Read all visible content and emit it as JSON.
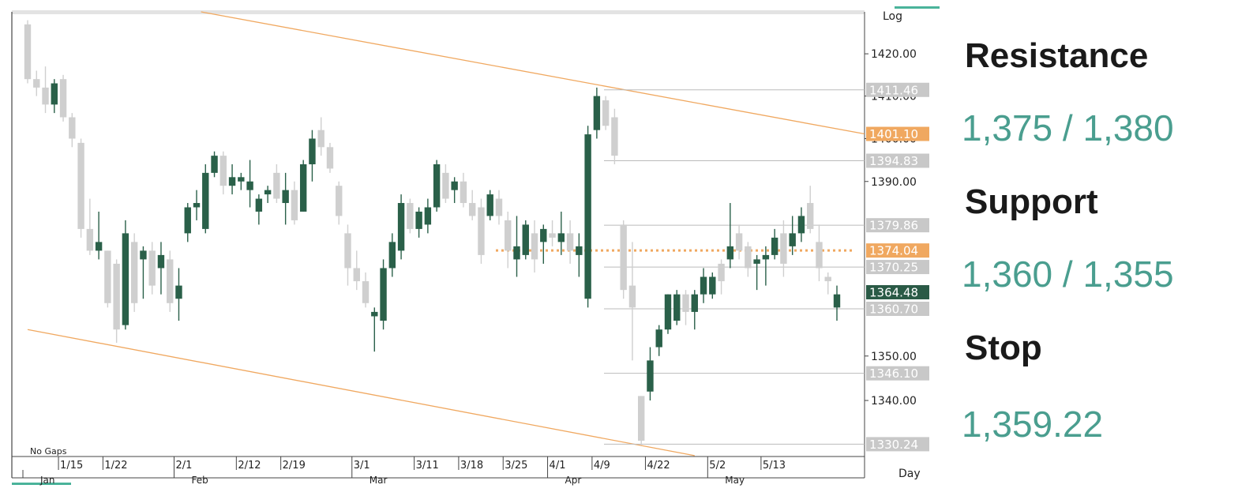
{
  "chart_data": {
    "type": "candlestick",
    "log_scale": true,
    "scale_label": "Log",
    "period_label": "Day",
    "note": "No Gaps",
    "ylim": [
      1327.5,
      1430
    ],
    "yticks": [
      {
        "value": 1340,
        "label": "1340.00"
      },
      {
        "value": 1350,
        "label": "1350.00"
      },
      {
        "value": 1390,
        "label": "1390.00"
      },
      {
        "value": 1400,
        "label": "1400.00"
      },
      {
        "value": 1410,
        "label": "1410.00"
      },
      {
        "value": 1420,
        "label": "1420.00"
      }
    ],
    "xticks": [
      {
        "value": 4,
        "label": "1/15"
      },
      {
        "value": 9,
        "label": "1/22"
      },
      {
        "value": 17,
        "label": "2/1"
      },
      {
        "value": 24,
        "label": "2/12"
      },
      {
        "value": 29,
        "label": "2/19"
      },
      {
        "value": 37,
        "label": "3/1"
      },
      {
        "value": 44,
        "label": "3/11"
      },
      {
        "value": 49,
        "label": "3/18"
      },
      {
        "value": 54,
        "label": "3/25"
      },
      {
        "value": 59,
        "label": "4/1"
      },
      {
        "value": 64,
        "label": "4/9"
      },
      {
        "value": 70,
        "label": "4/22"
      },
      {
        "value": 77,
        "label": "5/2"
      },
      {
        "value": 83,
        "label": "5/13"
      }
    ],
    "months": [
      {
        "value": 0,
        "label": "Jan"
      },
      {
        "value": 17,
        "label": "Feb"
      },
      {
        "value": 37,
        "label": "Mar"
      },
      {
        "value": 59,
        "label": "Apr"
      },
      {
        "value": 77,
        "label": "May"
      }
    ],
    "up_color": "#2a6049",
    "down_color": "#cfcfcf",
    "open": [
      1427,
      1414,
      1412,
      1408,
      1414,
      1405,
      1399,
      1379,
      1374,
      1374,
      1371,
      1357,
      1376,
      1372,
      1374,
      1370,
      1372,
      1363,
      1378,
      1384,
      1379,
      1392,
      1396,
      1389,
      1390,
      1388,
      1383,
      1387,
      1392,
      1385,
      1388,
      1383,
      1394,
      1402,
      1398,
      1389,
      1378,
      1370,
      1367,
      1359,
      1358,
      1370,
      1374,
      1385,
      1379,
      1380,
      1384,
      1392,
      1388,
      1390,
      1385,
      1384,
      1382,
      1386,
      1381,
      1372,
      1373,
      1378,
      1376,
      1378,
      1376,
      1378,
      1373,
      1363,
      1402,
      1409,
      1405,
      1380,
      1366,
      1341,
      1342,
      1352,
      1356,
      1358,
      1364,
      1360,
      1364,
      1364,
      1371,
      1372,
      1378,
      1375,
      1371,
      1372,
      1373,
      1378,
      1375,
      1378,
      1385,
      1376,
      1368,
      1361
    ],
    "high": [
      1428,
      1416,
      1417,
      1414,
      1415,
      1406,
      1400,
      1386,
      1383,
      1374,
      1372,
      1381,
      1378,
      1375,
      1376,
      1376,
      1374,
      1370,
      1385,
      1388,
      1394,
      1397,
      1397,
      1394,
      1392,
      1395,
      1387,
      1389,
      1394,
      1392,
      1390,
      1395,
      1402,
      1405,
      1399,
      1390,
      1380,
      1374,
      1369,
      1361,
      1372,
      1378,
      1387,
      1386,
      1384,
      1386,
      1395,
      1394,
      1391,
      1392,
      1388,
      1386,
      1388,
      1388,
      1383,
      1382,
      1381,
      1381,
      1380,
      1381,
      1383,
      1381,
      1378,
      1403,
      1412,
      1410,
      1407,
      1381,
      1376,
      1341,
      1352,
      1357,
      1364,
      1365,
      1365,
      1365,
      1370,
      1369,
      1372,
      1385,
      1380,
      1376,
      1373,
      1375,
      1379,
      1381,
      1382,
      1384,
      1389,
      1380,
      1369,
      1366
    ],
    "low": [
      1413,
      1410,
      1406,
      1406,
      1404,
      1398,
      1377,
      1373,
      1372,
      1361,
      1353,
      1356,
      1360,
      1363,
      1364,
      1364,
      1360,
      1358,
      1376,
      1381,
      1378,
      1391,
      1387,
      1387,
      1388,
      1384,
      1380,
      1385,
      1385,
      1380,
      1380,
      1383,
      1390,
      1396,
      1392,
      1380,
      1366,
      1365,
      1361,
      1351,
      1356,
      1368,
      1372,
      1378,
      1377,
      1378,
      1383,
      1385,
      1385,
      1384,
      1381,
      1371,
      1381,
      1380,
      1370,
      1368,
      1372,
      1369,
      1371,
      1375,
      1373,
      1371,
      1368,
      1361,
      1400,
      1402,
      1394,
      1363,
      1349,
      1330,
      1340,
      1350,
      1355,
      1357,
      1357,
      1356,
      1362,
      1363,
      1364,
      1370,
      1372,
      1368,
      1365,
      1366,
      1372,
      1368,
      1373,
      1376,
      1378,
      1367,
      1364,
      1358
    ],
    "close": [
      1414,
      1412,
      1408,
      1413,
      1405,
      1400,
      1379,
      1374,
      1376,
      1362,
      1356,
      1378,
      1362,
      1374,
      1366,
      1373,
      1362,
      1366,
      1384,
      1385,
      1392,
      1396,
      1389,
      1391,
      1391,
      1390,
      1386,
      1388,
      1386,
      1388,
      1381,
      1394,
      1400,
      1398,
      1393,
      1382,
      1370,
      1367,
      1362,
      1360,
      1370,
      1376,
      1385,
      1379,
      1383,
      1384,
      1394,
      1386,
      1390,
      1385,
      1382,
      1373,
      1387,
      1382,
      1374,
      1375,
      1380,
      1372,
      1379,
      1377,
      1378,
      1374,
      1375,
      1401,
      1410,
      1403,
      1396,
      1365,
      1361,
      1331,
      1349,
      1356,
      1364,
      1364,
      1360,
      1364,
      1368,
      1368,
      1367,
      1375,
      1374,
      1370,
      1372,
      1373,
      1377,
      1371,
      1378,
      1382,
      1379,
      1370,
      1367,
      1364
    ],
    "trendlines": [
      {
        "color": "#f0a860",
        "points": [
          {
            "x": 19.5,
            "y": 1430
          },
          {
            "x": 94.1,
            "y": 1401.1
          }
        ]
      },
      {
        "color": "#f0a860",
        "points": [
          {
            "x": 0,
            "y": 1356
          },
          {
            "x": 75,
            "y": 1327.7
          }
        ]
      }
    ],
    "levels": [
      {
        "value": 1411.46,
        "label": "1411.46",
        "color": "#c8c8c8",
        "line": "solid"
      },
      {
        "value": 1401.1,
        "label": "1401.10",
        "color": "#f0a860",
        "line": "none"
      },
      {
        "value": 1394.83,
        "label": "1394.83",
        "color": "#c8c8c8",
        "line": "solid"
      },
      {
        "value": 1379.86,
        "label": "1379.86",
        "color": "#c8c8c8",
        "line": "solid"
      },
      {
        "value": 1374.04,
        "label": "1374.04",
        "color": "#f0a860",
        "line": "dotted"
      },
      {
        "value": 1370.25,
        "label": "1370.25",
        "color": "#c8c8c8",
        "line": "solid"
      },
      {
        "value": 1364.48,
        "label": "1364.48",
        "color": "#2a5a46",
        "line": "none"
      },
      {
        "value": 1360.7,
        "label": "1360.70",
        "color": "#c8c8c8",
        "line": "solid"
      },
      {
        "value": 1346.1,
        "label": "1346.10",
        "color": "#c8c8c8",
        "line": "solid"
      },
      {
        "value": 1330.24,
        "label": "1330.24",
        "color": "#c8c8c8",
        "line": "solid"
      }
    ]
  },
  "panel": [
    {
      "heading": "Resistance",
      "value": "1,375 / 1,380"
    },
    {
      "heading": "Support",
      "value": "1,360 / 1,355"
    },
    {
      "heading": "Stop",
      "value": "1,359.22"
    }
  ]
}
